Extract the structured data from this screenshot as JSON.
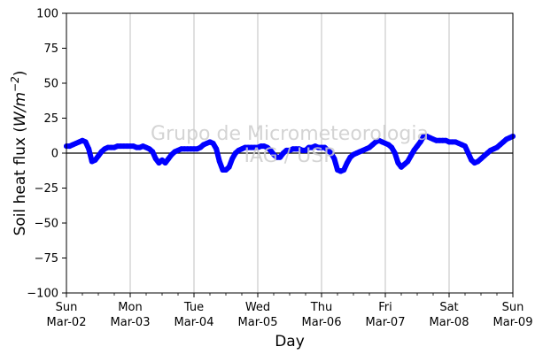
{
  "chart_data": {
    "type": "line",
    "xlabel": "Day",
    "ylabel_prefix": "Soil heat flux (",
    "ylabel_unit_base": "W/m",
    "ylabel_unit_exp": "−2",
    "ylabel_suffix": ")",
    "watermark_line1": "Grupo de Micrometeorologia",
    "watermark_line2": "IAG / USP",
    "ylim": [
      -100,
      100
    ],
    "y_ticks": [
      100,
      75,
      50,
      25,
      0,
      -25,
      -50,
      -75,
      -100
    ],
    "y_tick_labels": [
      "100",
      "75",
      "50",
      "25",
      "0",
      "−25",
      "−50",
      "−75",
      "−100"
    ],
    "xlim": [
      0,
      7
    ],
    "x_ticks": [
      {
        "day": 0,
        "weekday": "Sun",
        "date": "Mar-02"
      },
      {
        "day": 1,
        "weekday": "Mon",
        "date": "Mar-03"
      },
      {
        "day": 2,
        "weekday": "Tue",
        "date": "Mar-04"
      },
      {
        "day": 3,
        "weekday": "Wed",
        "date": "Mar-05"
      },
      {
        "day": 4,
        "weekday": "Thu",
        "date": "Mar-06"
      },
      {
        "day": 5,
        "weekday": "Fri",
        "date": "Mar-07"
      },
      {
        "day": 6,
        "weekday": "Sat",
        "date": "Mar-08"
      },
      {
        "day": 7,
        "weekday": "Sun",
        "date": "Mar-09"
      }
    ],
    "grid": "vertical",
    "zero_line": true,
    "colors": {
      "series": "#0000ff",
      "grid": "#b0b0b0",
      "watermark": "#cccccc"
    },
    "series": [
      {
        "x": [
          0.0,
          0.05,
          0.1,
          0.15,
          0.2,
          0.25,
          0.3,
          0.35,
          0.4,
          0.45,
          0.5,
          0.55,
          0.6,
          0.65,
          0.7,
          0.75,
          0.8,
          0.85,
          0.9,
          0.95,
          1.0,
          1.05,
          1.1,
          1.15,
          1.2,
          1.25,
          1.3,
          1.35,
          1.4,
          1.45,
          1.5,
          1.55,
          1.6,
          1.65,
          1.7,
          1.75,
          1.8,
          1.85,
          1.9,
          1.95,
          2.0,
          2.05,
          2.1,
          2.15,
          2.2,
          2.25,
          2.3,
          2.35,
          2.4,
          2.45,
          2.5,
          2.55,
          2.6,
          2.65,
          2.7,
          2.75,
          2.8,
          2.85,
          2.9,
          2.95,
          3.0,
          3.05,
          3.1,
          3.15,
          3.2,
          3.25,
          3.3,
          3.35,
          3.4,
          3.45,
          3.5,
          3.55,
          3.6,
          3.65,
          3.7,
          3.75,
          3.8,
          3.85,
          3.9,
          3.95,
          4.0,
          4.05,
          4.1,
          4.15,
          4.2,
          4.25,
          4.3,
          4.35,
          4.4,
          4.45,
          4.5,
          4.55,
          4.6,
          4.65,
          4.7,
          4.75,
          4.8,
          4.85,
          4.9,
          4.95,
          5.0,
          5.05,
          5.1,
          5.15,
          5.2,
          5.25,
          5.3,
          5.35,
          5.4,
          5.45,
          5.5,
          5.55,
          5.6,
          5.65,
          5.7,
          5.75,
          5.8,
          5.85,
          5.9,
          5.95,
          6.0,
          6.05,
          6.1,
          6.15,
          6.2,
          6.25,
          6.3,
          6.35,
          6.4,
          6.45,
          6.5,
          6.55,
          6.6,
          6.65,
          6.7,
          6.75,
          6.8,
          6.85,
          6.9,
          6.95,
          7.0
        ],
        "y": [
          5,
          5,
          6,
          7,
          8,
          9,
          8,
          3,
          -6,
          -5,
          -2,
          1,
          3,
          4,
          4,
          4,
          5,
          5,
          5,
          5,
          5,
          5,
          4,
          4,
          5,
          4,
          3,
          1,
          -4,
          -7,
          -5,
          -7,
          -4,
          -1,
          1,
          2,
          3,
          3,
          3,
          3,
          3,
          3,
          4,
          6,
          7,
          8,
          7,
          3,
          -6,
          -12,
          -12,
          -10,
          -4,
          0,
          2,
          3,
          4,
          4,
          4,
          4,
          4,
          5,
          5,
          4,
          2,
          -1,
          -3,
          -3,
          0,
          2,
          2,
          3,
          3,
          3,
          2,
          2,
          4,
          4,
          5,
          4,
          4,
          4,
          2,
          0,
          -4,
          -12,
          -13,
          -12,
          -7,
          -3,
          -1,
          0,
          1,
          2,
          3,
          4,
          6,
          8,
          9,
          8,
          7,
          6,
          4,
          0,
          -7,
          -10,
          -8,
          -6,
          -2,
          2,
          5,
          8,
          12,
          12,
          11,
          10,
          9,
          9,
          9,
          9,
          8,
          8,
          8,
          7,
          6,
          5,
          0,
          -5,
          -7,
          -6,
          -4,
          -2,
          0,
          2,
          3,
          4,
          6,
          8,
          10,
          11,
          12
        ]
      }
    ]
  }
}
